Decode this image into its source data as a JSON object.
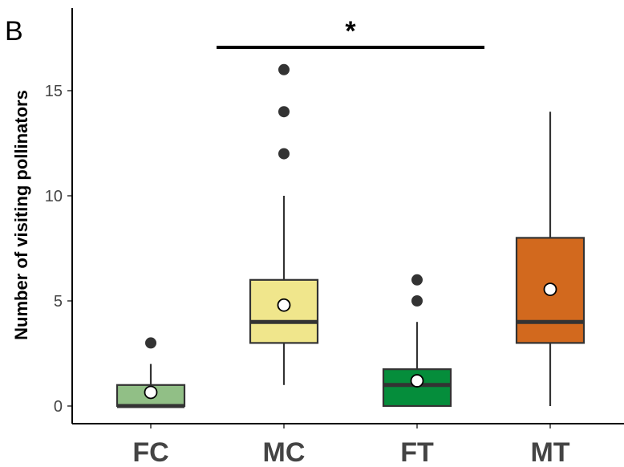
{
  "chart_data": {
    "type": "box",
    "panel_label": "B",
    "ylabel": "Number of visiting pollinators",
    "xlabel": "",
    "ylim": [
      -0.8,
      19
    ],
    "yticks": [
      0,
      5,
      10,
      15
    ],
    "grid": false,
    "categories": [
      "FC",
      "MC",
      "FT",
      "MT"
    ],
    "boxes": [
      {
        "category": "FC",
        "color": "#91BF86",
        "min": 0,
        "q1": 0,
        "median": 0,
        "q3": 1,
        "max": 2,
        "mean": 0.65,
        "outliers": [
          3
        ]
      },
      {
        "category": "MC",
        "color": "#F0E68C",
        "min": 1,
        "q1": 3,
        "median": 4,
        "q3": 6,
        "max": 10,
        "mean": 4.8,
        "outliers": [
          12,
          14,
          16
        ]
      },
      {
        "category": "FT",
        "color": "#058D3B",
        "min": 0,
        "q1": 0,
        "median": 1,
        "q3": 1.75,
        "max": 4,
        "mean": 1.2,
        "outliers": [
          5,
          6
        ]
      },
      {
        "category": "MT",
        "color": "#D2691E",
        "min": 0,
        "q1": 3,
        "median": 4,
        "q3": 8,
        "max": 14,
        "mean": 5.55,
        "outliers": []
      }
    ],
    "significance": {
      "from": "MC",
      "to": "FT",
      "y": 17,
      "label": "*"
    }
  }
}
